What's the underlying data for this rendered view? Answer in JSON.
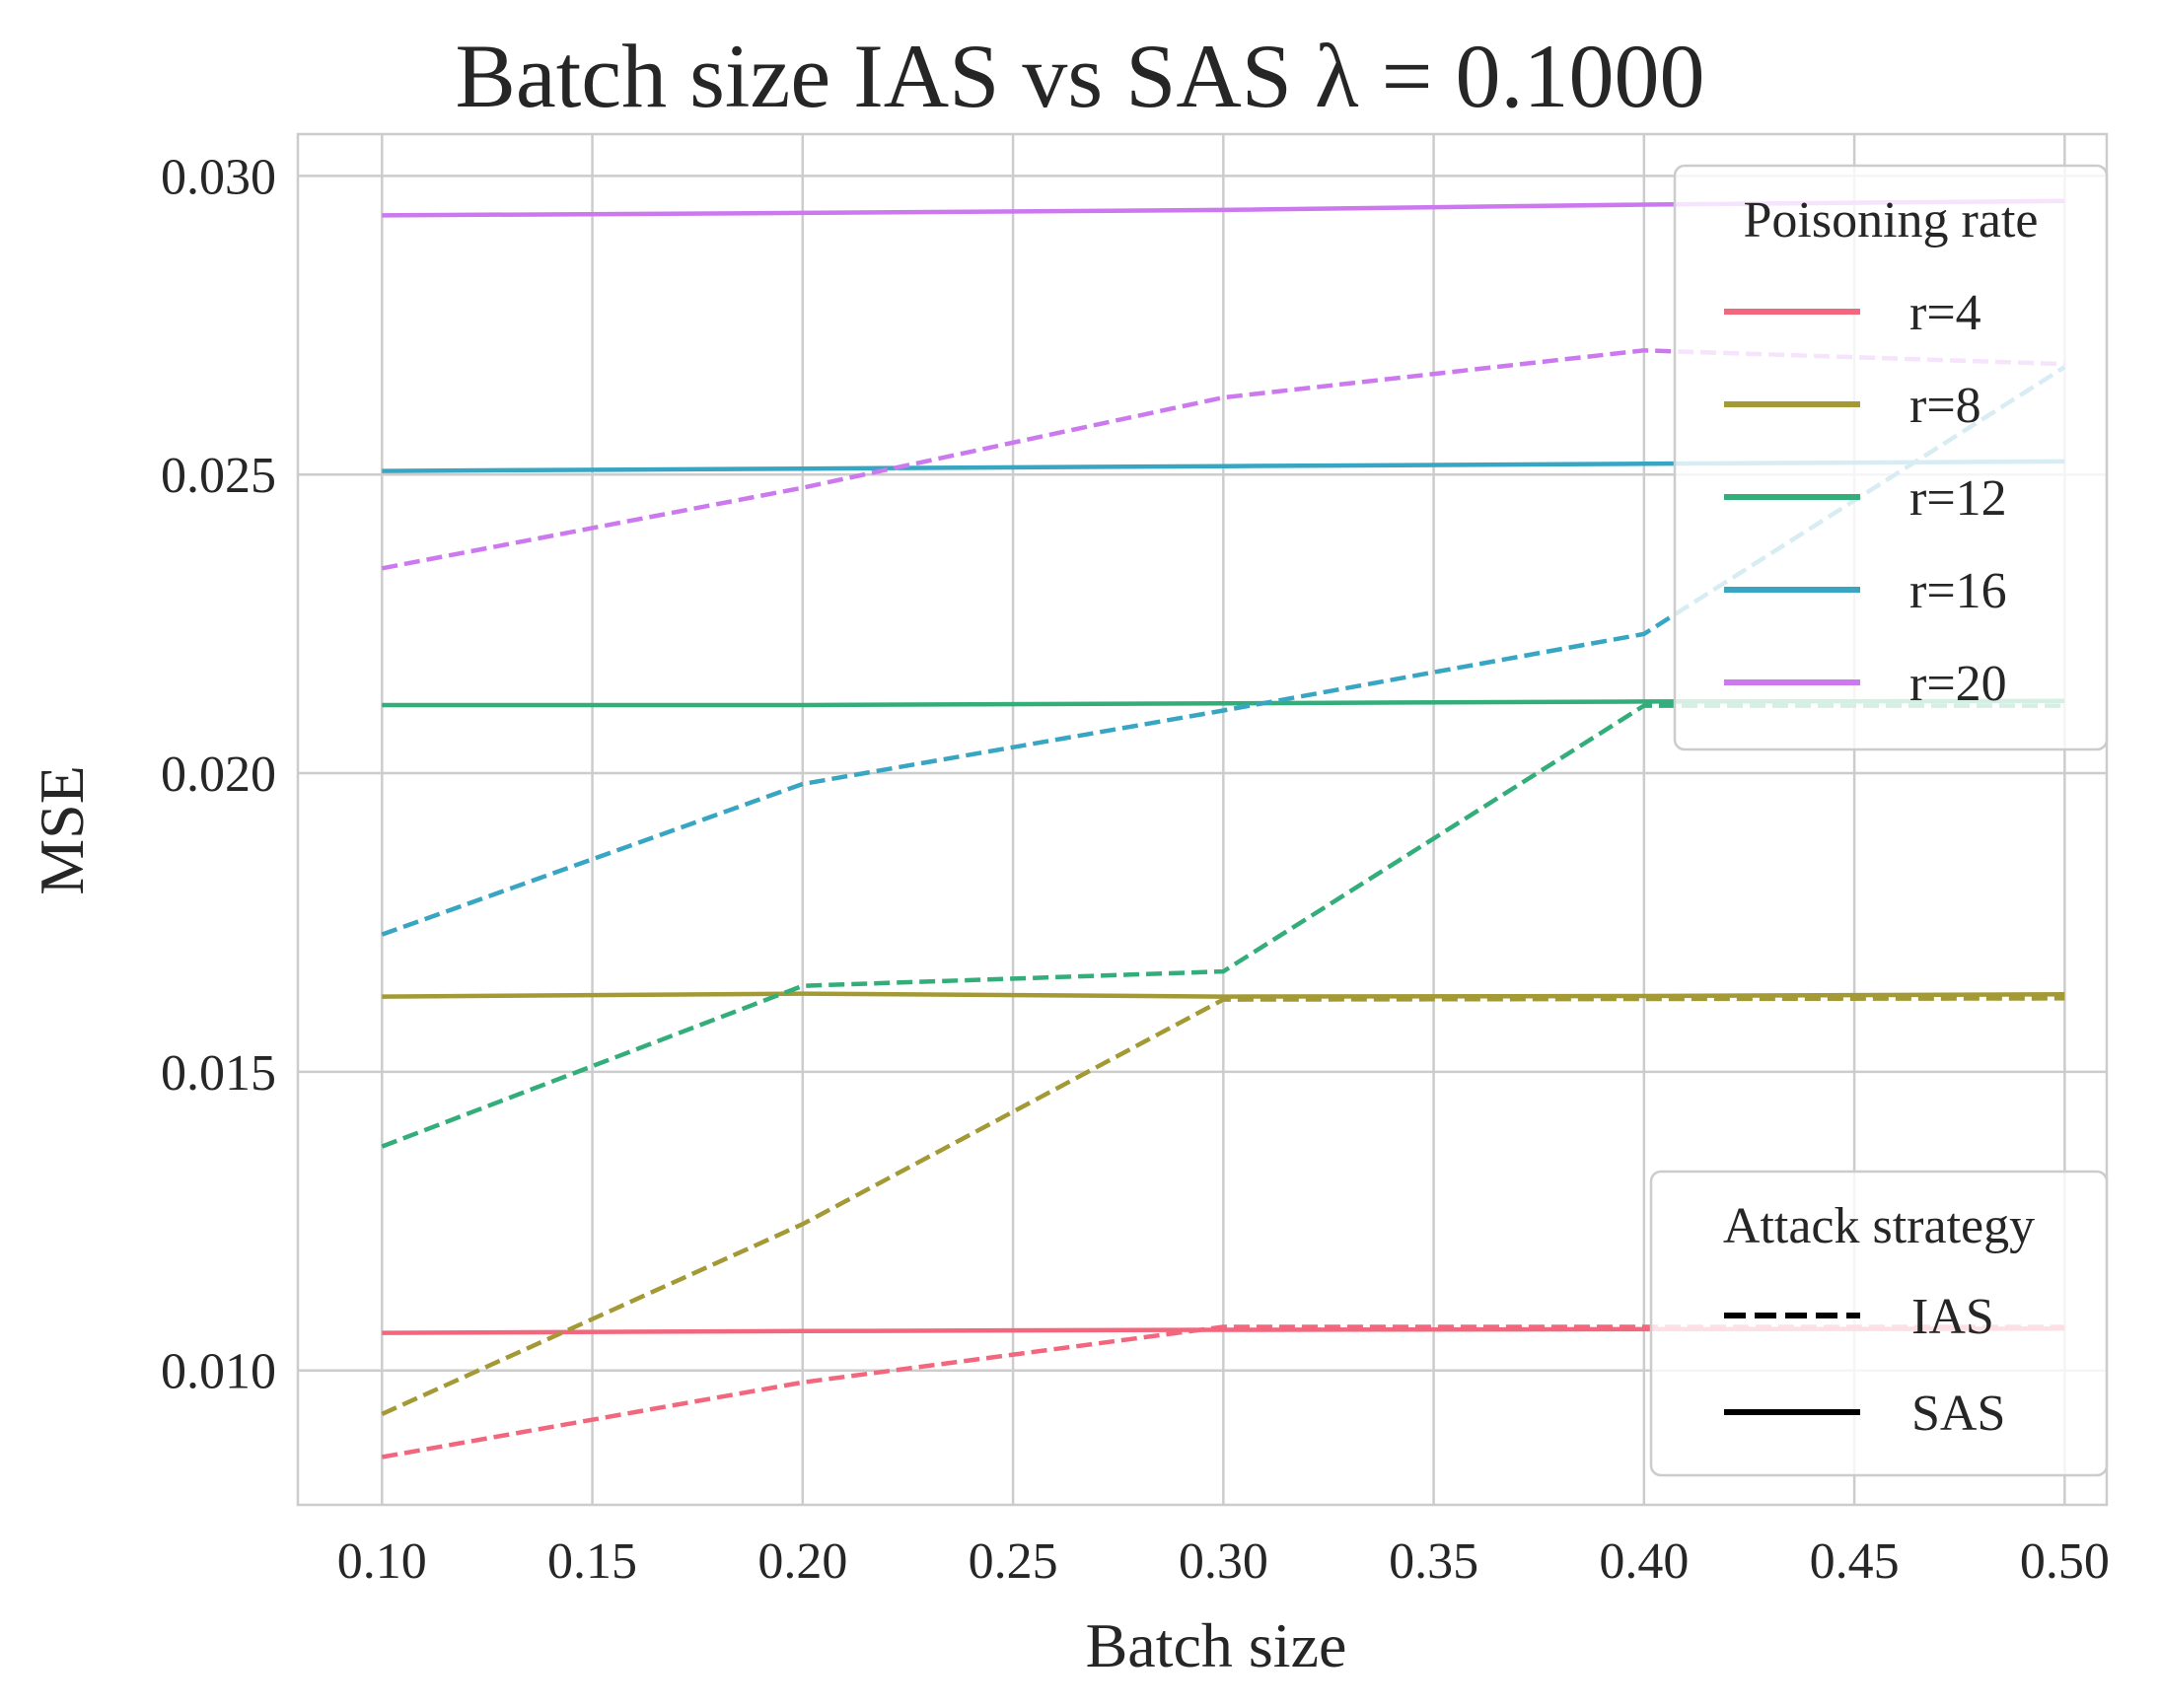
{
  "chart_data": {
    "type": "line",
    "title": "Batch size IAS vs SAS  λ = 0.1000",
    "xlabel": "Batch size",
    "ylabel": "MSE",
    "xlim": [
      0.08,
      0.51
    ],
    "ylim": [
      0.00775,
      0.0307
    ],
    "xticks": [
      "0.10",
      "0.15",
      "0.20",
      "0.25",
      "0.30",
      "0.35",
      "0.40",
      "0.45",
      "0.50"
    ],
    "yticks": [
      "0.010",
      "0.015",
      "0.020",
      "0.025",
      "0.030"
    ],
    "grid": true,
    "x": [
      0.1,
      0.2,
      0.3,
      0.4,
      0.5
    ],
    "series": [
      {
        "name": "r=4",
        "strategy": "SAS",
        "color": "#f2677d",
        "values": [
          0.01063,
          0.01066,
          0.01068,
          0.01069,
          0.0107
        ]
      },
      {
        "name": "r=4",
        "strategy": "IAS",
        "color": "#f2677d",
        "values": [
          0.00855,
          0.0098,
          0.01073,
          0.01073,
          0.01073
        ]
      },
      {
        "name": "r=8",
        "strategy": "SAS",
        "color": "#a39a35",
        "values": [
          0.01626,
          0.01631,
          0.01626,
          0.01627,
          0.0163
        ]
      },
      {
        "name": "r=8",
        "strategy": "IAS",
        "color": "#a39a35",
        "values": [
          0.00927,
          0.01245,
          0.01621,
          0.01622,
          0.01623
        ]
      },
      {
        "name": "r=12",
        "strategy": "SAS",
        "color": "#33ae7a",
        "values": [
          0.02114,
          0.02114,
          0.02117,
          0.0212,
          0.02121
        ]
      },
      {
        "name": "r=12",
        "strategy": "IAS",
        "color": "#33ae7a",
        "values": [
          0.01375,
          0.01644,
          0.01668,
          0.02113,
          0.02113
        ]
      },
      {
        "name": "r=16",
        "strategy": "SAS",
        "color": "#38a6c2",
        "values": [
          0.02506,
          0.0251,
          0.02514,
          0.02518,
          0.02522
        ]
      },
      {
        "name": "r=16",
        "strategy": "IAS",
        "color": "#38a6c2",
        "values": [
          0.0173,
          0.01982,
          0.02105,
          0.02233,
          0.0268
        ]
      },
      {
        "name": "r=20",
        "strategy": "SAS",
        "color": "#cc79f0",
        "values": [
          0.02934,
          0.02938,
          0.02943,
          0.02952,
          0.02958
        ]
      },
      {
        "name": "r=20",
        "strategy": "IAS",
        "color": "#cc79f0",
        "values": [
          0.02343,
          0.02478,
          0.02629,
          0.02708,
          0.02685
        ]
      }
    ],
    "legend_rate": {
      "title": "Poisoning rate",
      "placement": "top-right",
      "entries": [
        {
          "label": "r=4",
          "color": "#f2677d"
        },
        {
          "label": "r=8",
          "color": "#a39a35"
        },
        {
          "label": "r=12",
          "color": "#33ae7a"
        },
        {
          "label": "r=16",
          "color": "#38a6c2"
        },
        {
          "label": "r=20",
          "color": "#cc79f0"
        }
      ]
    },
    "legend_strategy": {
      "title": "Attack strategy",
      "placement": "bottom-right",
      "entries": [
        {
          "label": "IAS",
          "style": "dashed"
        },
        {
          "label": "SAS",
          "style": "solid"
        }
      ]
    }
  }
}
